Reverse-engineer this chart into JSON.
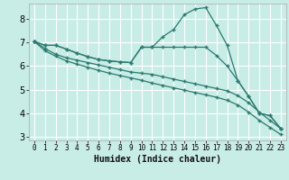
{
  "xlabel": "Humidex (Indice chaleur)",
  "bg_color": "#c8ece6",
  "grid_color": "#ffffff",
  "line_color": "#2a7a70",
  "marker": "+",
  "xlim": [
    -0.5,
    23.5
  ],
  "ylim": [
    2.85,
    8.65
  ],
  "yticks": [
    3,
    4,
    5,
    6,
    7,
    8
  ],
  "xticks": [
    0,
    1,
    2,
    3,
    4,
    5,
    6,
    7,
    8,
    9,
    10,
    11,
    12,
    13,
    14,
    15,
    16,
    17,
    18,
    19,
    20,
    21,
    22,
    23
  ],
  "lines": [
    {
      "x": [
        0,
        1,
        2,
        3,
        4,
        5,
        6,
        7,
        8,
        9,
        10,
        11,
        12,
        13,
        14,
        15,
        16,
        17,
        18,
        19,
        20,
        21,
        22,
        23
      ],
      "y": [
        7.05,
        6.88,
        6.88,
        6.72,
        6.55,
        6.4,
        6.28,
        6.22,
        6.18,
        6.15,
        6.8,
        6.8,
        7.25,
        7.55,
        8.18,
        8.42,
        8.48,
        7.72,
        6.88,
        5.38,
        4.72,
        4.0,
        3.9,
        3.35
      ]
    },
    {
      "x": [
        0,
        1,
        2,
        3,
        4,
        5,
        6,
        7,
        8,
        9,
        10,
        11,
        12,
        13,
        14,
        15,
        16,
        17,
        18,
        19,
        20,
        21,
        22,
        23
      ],
      "y": [
        7.05,
        6.88,
        6.88,
        6.72,
        6.55,
        6.4,
        6.28,
        6.22,
        6.18,
        6.15,
        6.8,
        6.8,
        6.8,
        6.8,
        6.8,
        6.8,
        6.8,
        6.45,
        6.0,
        5.38,
        4.72,
        4.0,
        3.9,
        3.35
      ]
    },
    {
      "x": [
        0,
        1,
        2,
        3,
        4,
        5,
        6,
        7,
        8,
        9,
        10,
        11,
        12,
        13,
        14,
        15,
        16,
        17,
        18,
        19,
        20,
        21,
        22,
        23
      ],
      "y": [
        7.05,
        6.75,
        6.5,
        6.35,
        6.25,
        6.15,
        6.05,
        5.95,
        5.85,
        5.75,
        5.7,
        5.65,
        5.55,
        5.45,
        5.35,
        5.25,
        5.15,
        5.05,
        4.95,
        4.75,
        4.45,
        4.05,
        3.7,
        3.35
      ]
    },
    {
      "x": [
        0,
        1,
        2,
        3,
        4,
        5,
        6,
        7,
        8,
        9,
        10,
        11,
        12,
        13,
        14,
        15,
        16,
        17,
        18,
        19,
        20,
        21,
        22,
        23
      ],
      "y": [
        7.05,
        6.65,
        6.42,
        6.22,
        6.08,
        5.95,
        5.82,
        5.7,
        5.6,
        5.5,
        5.4,
        5.28,
        5.18,
        5.08,
        4.98,
        4.88,
        4.78,
        4.68,
        4.55,
        4.35,
        4.05,
        3.7,
        3.4,
        3.1
      ]
    }
  ]
}
